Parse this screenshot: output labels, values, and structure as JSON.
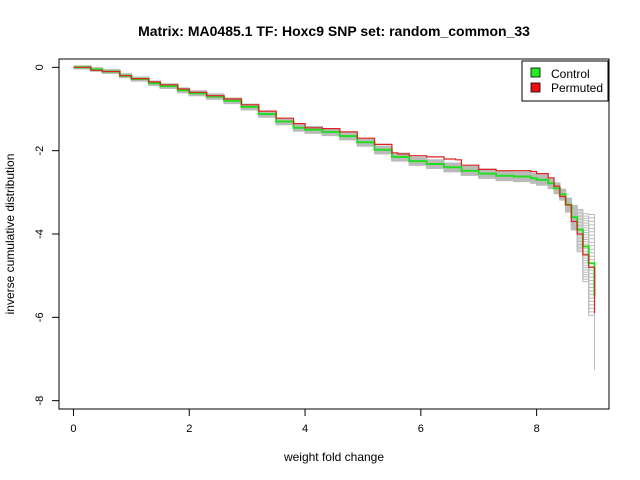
{
  "chart_data": {
    "type": "line",
    "title": "Matrix: MA0485.1 TF: Hoxc9 SNP set: random_common_33",
    "xlabel": "weight fold change",
    "ylabel": "inverse cumulative distribution",
    "xlim": [
      -0.25,
      9.25
    ],
    "ylim": [
      -8.2,
      0.2
    ],
    "xticks": [
      0,
      2,
      4,
      6,
      8
    ],
    "yticks": [
      0,
      -2,
      -4,
      -6,
      -8
    ],
    "legend_position": "top-right",
    "colors": {
      "control": "#22dd22",
      "permuted": "#dd2222",
      "background": "#bbbbbb",
      "legend_control": "#22ee22",
      "legend_permuted": "#ee1111"
    },
    "series": [
      {
        "name": "Control",
        "x": [
          0,
          0.2,
          0.3,
          0.5,
          0.8,
          1.0,
          1.3,
          1.5,
          1.8,
          2.0,
          2.3,
          2.6,
          2.9,
          3.2,
          3.5,
          3.8,
          4.0,
          4.3,
          4.6,
          4.9,
          5.2,
          5.5,
          5.8,
          6.1,
          6.4,
          6.7,
          7.0,
          7.3,
          7.6,
          7.9,
          8.0,
          8.2,
          8.3,
          8.4,
          8.5,
          8.6,
          8.7,
          8.8,
          8.9,
          9.0
        ],
        "y": [
          0,
          0,
          -0.05,
          -0.1,
          -0.2,
          -0.28,
          -0.38,
          -0.45,
          -0.55,
          -0.62,
          -0.7,
          -0.8,
          -0.95,
          -1.12,
          -1.3,
          -1.45,
          -1.5,
          -1.55,
          -1.65,
          -1.8,
          -1.98,
          -2.15,
          -2.25,
          -2.32,
          -2.4,
          -2.48,
          -2.55,
          -2.6,
          -2.62,
          -2.66,
          -2.7,
          -2.78,
          -2.9,
          -3.05,
          -3.3,
          -3.6,
          -3.9,
          -4.3,
          -4.7,
          -5.5
        ]
      },
      {
        "name": "Permuted",
        "x": [
          0,
          0.2,
          0.3,
          0.5,
          0.8,
          1.0,
          1.3,
          1.5,
          1.8,
          2.0,
          2.3,
          2.6,
          2.9,
          3.2,
          3.5,
          3.8,
          4.0,
          4.3,
          4.6,
          4.9,
          5.2,
          5.5,
          5.6,
          5.8,
          6.1,
          6.4,
          6.6,
          6.7,
          7.0,
          7.3,
          7.6,
          7.9,
          8.0,
          8.2,
          8.3,
          8.4,
          8.5,
          8.6,
          8.7,
          8.8,
          8.9,
          9.0
        ],
        "y": [
          0,
          0,
          -0.07,
          -0.1,
          -0.2,
          -0.27,
          -0.35,
          -0.42,
          -0.52,
          -0.6,
          -0.68,
          -0.76,
          -0.9,
          -1.05,
          -1.22,
          -1.35,
          -1.45,
          -1.47,
          -1.55,
          -1.7,
          -1.85,
          -2.05,
          -2.08,
          -2.12,
          -2.15,
          -2.2,
          -2.22,
          -2.35,
          -2.45,
          -2.48,
          -2.48,
          -2.5,
          -2.55,
          -2.65,
          -2.85,
          -3.1,
          -3.3,
          -3.7,
          -4.0,
          -4.5,
          -4.8,
          -5.9
        ]
      }
    ]
  }
}
